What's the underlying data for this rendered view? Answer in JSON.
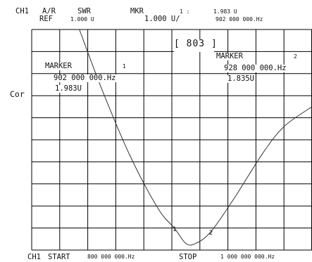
{
  "header": {
    "channel": "CH1",
    "format_top": "A/R",
    "format_bottom": "REF",
    "swr_label": "SWR",
    "ref_value": "1.000 U",
    "scale_value": "1.000 U/",
    "mkr_label": "MKR",
    "mkr_index": "1 :",
    "mkr_value": "1.983 U",
    "mkr_freq": "902 000 000.Hz"
  },
  "left_label": "Cor",
  "status_box": "[ 803 ]",
  "markers": [
    {
      "title": "MARKER",
      "number": "1",
      "freq": "902 000 000.Hz",
      "value": "1.983U"
    },
    {
      "title": "MARKER",
      "number": "2",
      "freq": "928 000 000.Hz",
      "value": "1.835U"
    }
  ],
  "marker_glyphs": {
    "m1": "1",
    "m2": "2"
  },
  "footer": {
    "channel": "CH1",
    "start_label": "START",
    "start_value": "800 000 000.Hz",
    "stop_label": "STOP",
    "stop_value": "1 000 000 000.Hz"
  },
  "colors": {
    "grid": "#000000",
    "trace": "#333333",
    "background": "#ffffff"
  },
  "chart_data": {
    "type": "line",
    "title": "",
    "xlabel": "",
    "ylabel": "",
    "x_start": 800000000,
    "x_stop": 1000000000,
    "ylim": [
      1.0,
      11.0
    ],
    "grid": true,
    "divisions": [
      10,
      10
    ],
    "series": [
      {
        "x": [
          834000000,
          850000000,
          870000000,
          890000000,
          902000000,
          910000000,
          917000000,
          928000000,
          945000000,
          965000000,
          980000000,
          1000000000
        ],
        "values": [
          11.0,
          8.3,
          5.3,
          2.9,
          1.98,
          1.3,
          1.3,
          1.84,
          3.4,
          5.4,
          6.6,
          7.5
        ]
      }
    ],
    "markers": [
      {
        "x": 902000000,
        "value": 1.983
      },
      {
        "x": 928000000,
        "value": 1.835
      }
    ]
  }
}
